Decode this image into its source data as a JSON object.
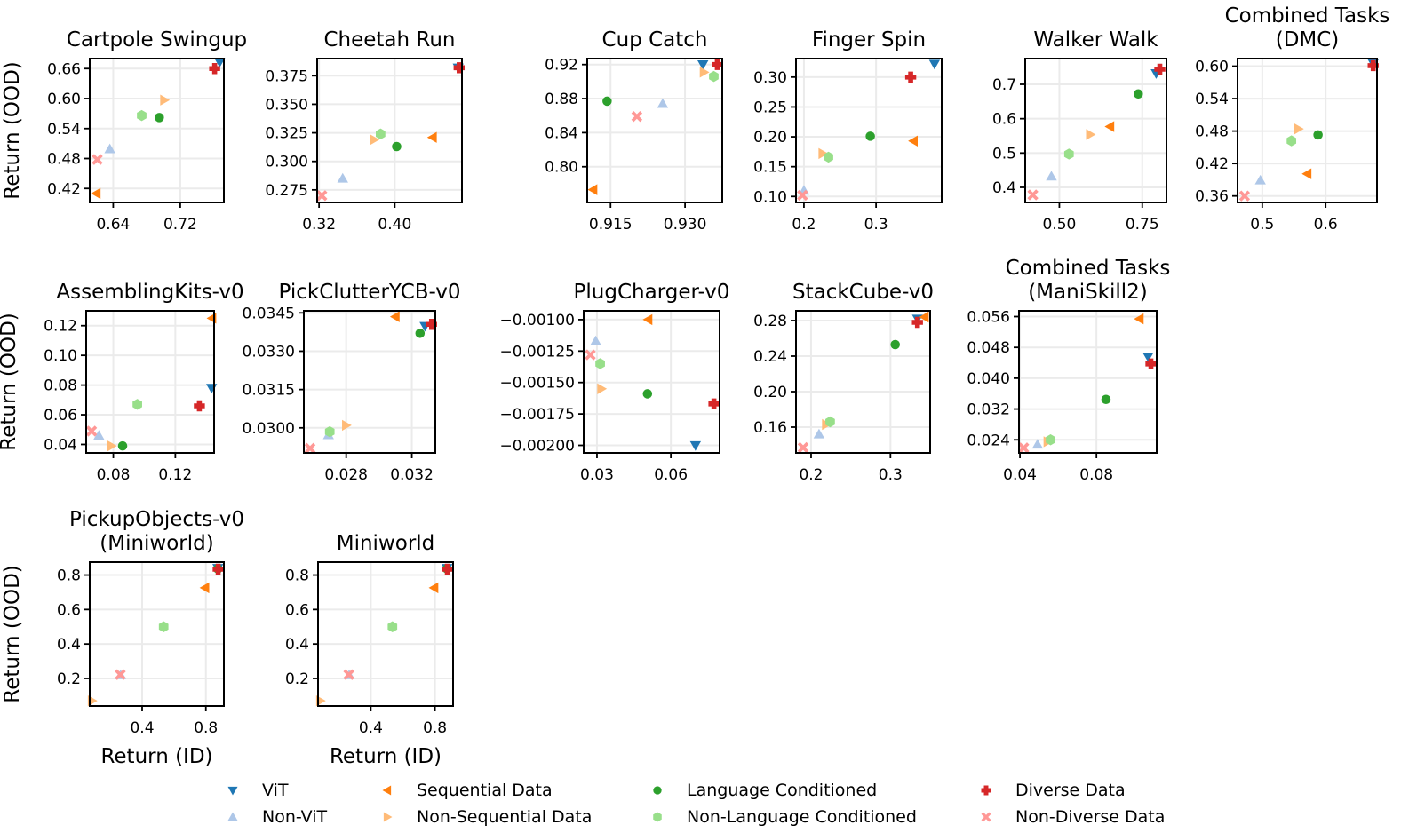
{
  "chart_data": [
    {
      "type": "scatter",
      "title": "Cartpole Swingup",
      "xlabel": "",
      "ylabel": "Return (OOD)",
      "xlim": [
        0.612,
        0.772
      ],
      "ylim": [
        0.392,
        0.68
      ],
      "xticks": [
        "0.64",
        "0.72"
      ],
      "yticks": [
        "0.42",
        "0.48",
        "0.54",
        "0.60",
        "0.66"
      ],
      "points": [
        {
          "series": "ViT",
          "x": 0.767,
          "y": 0.673
        },
        {
          "series": "Non-ViT",
          "x": 0.636,
          "y": 0.499
        },
        {
          "series": "Sequential Data",
          "x": 0.62,
          "y": 0.41
        },
        {
          "series": "Non-Sequential Data",
          "x": 0.701,
          "y": 0.597
        },
        {
          "series": "Language Conditioned",
          "x": 0.695,
          "y": 0.562
        },
        {
          "series": "Non-Language Conditioned",
          "x": 0.674,
          "y": 0.566
        },
        {
          "series": "Diverse Data",
          "x": 0.761,
          "y": 0.66
        },
        {
          "series": "Non-Diverse Data",
          "x": 0.621,
          "y": 0.478
        }
      ]
    },
    {
      "type": "scatter",
      "title": "Cheetah Run",
      "xlabel": "",
      "ylabel": "",
      "xlim": [
        0.318,
        0.471
      ],
      "ylim": [
        0.264,
        0.39
      ],
      "xticks": [
        "0.32",
        "0.40"
      ],
      "yticks": [
        "0.275",
        "0.300",
        "0.325",
        "0.350",
        "0.375"
      ],
      "points": [
        {
          "series": "ViT",
          "x": 0.467,
          "y": 0.382
        },
        {
          "series": "Non-ViT",
          "x": 0.345,
          "y": 0.285
        },
        {
          "series": "Sequential Data",
          "x": 0.44,
          "y": 0.321
        },
        {
          "series": "Non-Sequential Data",
          "x": 0.378,
          "y": 0.319
        },
        {
          "series": "Language Conditioned",
          "x": 0.402,
          "y": 0.313
        },
        {
          "series": "Non-Language Conditioned",
          "x": 0.385,
          "y": 0.324
        },
        {
          "series": "Diverse Data",
          "x": 0.468,
          "y": 0.382
        },
        {
          "series": "Non-Diverse Data",
          "x": 0.323,
          "y": 0.27
        }
      ]
    },
    {
      "type": "scatter",
      "title": "Cup Catch",
      "xlabel": "",
      "ylabel": "",
      "xlim": [
        0.9103,
        0.9375
      ],
      "ylim": [
        0.758,
        0.927
      ],
      "xticks": [
        "0.915",
        "0.930"
      ],
      "yticks": [
        "0.80",
        "0.84",
        "0.88",
        "0.92"
      ],
      "points": [
        {
          "series": "ViT",
          "x": 0.9336,
          "y": 0.92
        },
        {
          "series": "Non-ViT",
          "x": 0.9255,
          "y": 0.874
        },
        {
          "series": "Sequential Data",
          "x": 0.9115,
          "y": 0.773
        },
        {
          "series": "Non-Sequential Data",
          "x": 0.9338,
          "y": 0.911
        },
        {
          "series": "Language Conditioned",
          "x": 0.9143,
          "y": 0.877
        },
        {
          "series": "Non-Language Conditioned",
          "x": 0.9358,
          "y": 0.906
        },
        {
          "series": "Diverse Data",
          "x": 0.9365,
          "y": 0.92
        },
        {
          "series": "Non-Diverse Data",
          "x": 0.9203,
          "y": 0.859
        }
      ]
    },
    {
      "type": "scatter",
      "title": "Finger Spin",
      "xlabel": "",
      "ylabel": "",
      "xlim": [
        0.189,
        0.391
      ],
      "ylim": [
        0.09,
        0.331
      ],
      "xticks": [
        "0.2",
        "0.3"
      ],
      "yticks": [
        "0.10",
        "0.15",
        "0.20",
        "0.25",
        "0.30"
      ],
      "points": [
        {
          "series": "ViT",
          "x": 0.381,
          "y": 0.322
        },
        {
          "series": "Non-ViT",
          "x": 0.2,
          "y": 0.11
        },
        {
          "series": "Sequential Data",
          "x": 0.352,
          "y": 0.193
        },
        {
          "series": "Non-Sequential Data",
          "x": 0.226,
          "y": 0.172
        },
        {
          "series": "Language Conditioned",
          "x": 0.292,
          "y": 0.201
        },
        {
          "series": "Non-Language Conditioned",
          "x": 0.234,
          "y": 0.166
        },
        {
          "series": "Diverse Data",
          "x": 0.348,
          "y": 0.3
        },
        {
          "series": "Non-Diverse Data",
          "x": 0.198,
          "y": 0.102
        }
      ]
    },
    {
      "type": "scatter",
      "title": "Walker Walk",
      "xlabel": "",
      "ylabel": "",
      "xlim": [
        0.397,
        0.823
      ],
      "ylim": [
        0.356,
        0.775
      ],
      "xticks": [
        "0.50",
        "0.75"
      ],
      "yticks": [
        "0.4",
        "0.5",
        "0.6",
        "0.7"
      ],
      "points": [
        {
          "series": "ViT",
          "x": 0.792,
          "y": 0.732
        },
        {
          "series": "Non-ViT",
          "x": 0.476,
          "y": 0.432
        },
        {
          "series": "Sequential Data",
          "x": 0.653,
          "y": 0.577
        },
        {
          "series": "Non-Sequential Data",
          "x": 0.593,
          "y": 0.554
        },
        {
          "series": "Language Conditioned",
          "x": 0.738,
          "y": 0.672
        },
        {
          "series": "Non-Language Conditioned",
          "x": 0.529,
          "y": 0.497
        },
        {
          "series": "Diverse Data",
          "x": 0.803,
          "y": 0.744
        },
        {
          "series": "Non-Diverse Data",
          "x": 0.42,
          "y": 0.378
        }
      ]
    },
    {
      "type": "scatter",
      "title": "Combined Tasks\n(DMC)",
      "xlabel": "",
      "ylabel": "",
      "xlim": [
        0.461,
        0.681
      ],
      "ylim": [
        0.348,
        0.614
      ],
      "xticks": [
        "0.5",
        "0.6"
      ],
      "yticks": [
        "0.36",
        "0.42",
        "0.48",
        "0.54",
        "0.60"
      ],
      "points": [
        {
          "series": "ViT",
          "x": 0.675,
          "y": 0.605
        },
        {
          "series": "Non-ViT",
          "x": 0.497,
          "y": 0.389
        },
        {
          "series": "Sequential Data",
          "x": 0.571,
          "y": 0.401
        },
        {
          "series": "Non-Sequential Data",
          "x": 0.557,
          "y": 0.484
        },
        {
          "series": "Language Conditioned",
          "x": 0.588,
          "y": 0.473
        },
        {
          "series": "Non-Language Conditioned",
          "x": 0.546,
          "y": 0.462
        },
        {
          "series": "Diverse Data",
          "x": 0.675,
          "y": 0.601
        },
        {
          "series": "Non-Diverse Data",
          "x": 0.472,
          "y": 0.36
        }
      ]
    },
    {
      "type": "scatter",
      "title": "AssemblingKits-v0",
      "xlabel": "",
      "ylabel": "Return (OOD)",
      "xlim": [
        0.0625,
        0.145
      ],
      "ylim": [
        0.0343,
        0.13
      ],
      "xticks": [
        "0.08",
        "0.12"
      ],
      "yticks": [
        "0.04",
        "0.06",
        "0.08",
        "0.10",
        "0.12"
      ],
      "points": [
        {
          "series": "ViT",
          "x": 0.1434,
          "y": 0.078
        },
        {
          "series": "Non-ViT",
          "x": 0.0707,
          "y": 0.046
        },
        {
          "series": "Sequential Data",
          "x": 0.1437,
          "y": 0.125
        },
        {
          "series": "Non-Sequential Data",
          "x": 0.0788,
          "y": 0.039
        },
        {
          "series": "Language Conditioned",
          "x": 0.086,
          "y": 0.039
        },
        {
          "series": "Non-Language Conditioned",
          "x": 0.0955,
          "y": 0.067
        },
        {
          "series": "Diverse Data",
          "x": 0.1355,
          "y": 0.066
        },
        {
          "series": "Non-Diverse Data",
          "x": 0.066,
          "y": 0.049
        }
      ]
    },
    {
      "type": "scatter",
      "title": "PickClutterYCB-v0",
      "xlabel": "",
      "ylabel": "",
      "xlim": [
        0.02542,
        0.03343
      ],
      "ylim": [
        0.02902,
        0.03458
      ],
      "xticks": [
        "0.028",
        "0.032"
      ],
      "yticks": [
        "0.0300",
        "0.0315",
        "0.0330",
        "0.0345"
      ],
      "points": [
        {
          "series": "ViT",
          "x": 0.0328,
          "y": 0.03398
        },
        {
          "series": "Non-ViT",
          "x": 0.02692,
          "y": 0.02972
        },
        {
          "series": "Sequential Data",
          "x": 0.031,
          "y": 0.03435
        },
        {
          "series": "Non-Sequential Data",
          "x": 0.028,
          "y": 0.0301
        },
        {
          "series": "Language Conditioned",
          "x": 0.0325,
          "y": 0.0337
        },
        {
          "series": "Non-Language Conditioned",
          "x": 0.027,
          "y": 0.02985
        },
        {
          "series": "Diverse Data",
          "x": 0.0332,
          "y": 0.03405
        },
        {
          "series": "Non-Diverse Data",
          "x": 0.0258,
          "y": 0.0292
        }
      ]
    },
    {
      "type": "scatter",
      "title": "PlugCharger-v0",
      "xlabel": "",
      "ylabel": "",
      "xlim": [
        0.0246,
        0.0798
      ],
      "ylim": [
        -0.00206,
        -0.00093
      ],
      "xticks": [
        "0.03",
        "0.06"
      ],
      "yticks": [
        "−0.00200",
        "−0.00175",
        "−0.00150",
        "−0.00125",
        "−0.00100"
      ],
      "points": [
        {
          "series": "ViT",
          "x": 0.07,
          "y": -0.002
        },
        {
          "series": "Non-ViT",
          "x": 0.0295,
          "y": -0.00117
        },
        {
          "series": "Sequential Data",
          "x": 0.0508,
          "y": -0.001
        },
        {
          "series": "Non-Sequential Data",
          "x": 0.0318,
          "y": -0.00155
        },
        {
          "series": "Language Conditioned",
          "x": 0.0505,
          "y": -0.00159
        },
        {
          "series": "Non-Language Conditioned",
          "x": 0.0313,
          "y": -0.00135
        },
        {
          "series": "Diverse Data",
          "x": 0.0775,
          "y": -0.00167
        },
        {
          "series": "Non-Diverse Data",
          "x": 0.0273,
          "y": -0.00128
        }
      ]
    },
    {
      "type": "scatter",
      "title": "StackCube-v0",
      "xlabel": "",
      "ylabel": "",
      "xlim": [
        0.181,
        0.35
      ],
      "ylim": [
        0.131,
        0.291
      ],
      "xticks": [
        "0.2",
        "0.3"
      ],
      "yticks": [
        "0.16",
        "0.20",
        "0.24",
        "0.28"
      ],
      "points": [
        {
          "series": "ViT",
          "x": 0.334,
          "y": 0.282
        },
        {
          "series": "Non-ViT",
          "x": 0.21,
          "y": 0.152
        },
        {
          "series": "Sequential Data",
          "x": 0.343,
          "y": 0.284
        },
        {
          "series": "Non-Sequential Data",
          "x": 0.219,
          "y": 0.163
        },
        {
          "series": "Language Conditioned",
          "x": 0.306,
          "y": 0.253
        },
        {
          "series": "Non-Language Conditioned",
          "x": 0.224,
          "y": 0.166
        },
        {
          "series": "Diverse Data",
          "x": 0.334,
          "y": 0.278
        },
        {
          "series": "Non-Diverse Data",
          "x": 0.19,
          "y": 0.137
        }
      ]
    },
    {
      "type": "scatter",
      "title": "Combined Tasks\n(ManiSkill2)",
      "xlabel": "",
      "ylabel": "",
      "xlim": [
        0.0395,
        0.1115
      ],
      "ylim": [
        0.0206,
        0.0575
      ],
      "xticks": [
        "0.04",
        "0.08"
      ],
      "yticks": [
        "0.024",
        "0.032",
        "0.040",
        "0.048",
        "0.056"
      ],
      "points": [
        {
          "series": "ViT",
          "x": 0.107,
          "y": 0.0456
        },
        {
          "series": "Non-ViT",
          "x": 0.0492,
          "y": 0.0228
        },
        {
          "series": "Sequential Data",
          "x": 0.1025,
          "y": 0.0554
        },
        {
          "series": "Non-Sequential Data",
          "x": 0.0545,
          "y": 0.0235
        },
        {
          "series": "Language Conditioned",
          "x": 0.085,
          "y": 0.0345
        },
        {
          "series": "Non-Language Conditioned",
          "x": 0.056,
          "y": 0.024
        },
        {
          "series": "Diverse Data",
          "x": 0.1085,
          "y": 0.0437
        },
        {
          "series": "Non-Diverse Data",
          "x": 0.042,
          "y": 0.0219
        }
      ]
    },
    {
      "type": "scatter",
      "title": "PickupObjects-v0\n(Miniworld)",
      "xlabel": "Return (ID)",
      "ylabel": "Return (OOD)",
      "xlim": [
        0.071,
        0.913
      ],
      "ylim": [
        0.04,
        0.875
      ],
      "xticks": [
        "0.4",
        "0.8"
      ],
      "yticks": [
        "0.2",
        "0.4",
        "0.6",
        "0.8"
      ],
      "points": [
        {
          "series": "ViT",
          "x": 0.875,
          "y": 0.84
        },
        {
          "series": "Non-ViT",
          "x": 0.265,
          "y": 0.22
        },
        {
          "series": "Sequential Data",
          "x": 0.795,
          "y": 0.726
        },
        {
          "series": "Non-Sequential Data",
          "x": 0.085,
          "y": 0.07
        },
        {
          "series": "Language Conditioned",
          "x": 0.875,
          "y": 0.836
        },
        {
          "series": "Non-Language Conditioned",
          "x": 0.535,
          "y": 0.5
        },
        {
          "series": "Diverse Data",
          "x": 0.877,
          "y": 0.834
        },
        {
          "series": "Non-Diverse Data",
          "x": 0.263,
          "y": 0.222
        }
      ]
    },
    {
      "type": "scatter",
      "title": "Miniworld",
      "xlabel": "Return (ID)",
      "ylabel": "",
      "xlim": [
        0.071,
        0.913
      ],
      "ylim": [
        0.04,
        0.875
      ],
      "xticks": [
        "0.4",
        "0.8"
      ],
      "yticks": [
        "0.2",
        "0.4",
        "0.6",
        "0.8"
      ],
      "points": [
        {
          "series": "ViT",
          "x": 0.875,
          "y": 0.84
        },
        {
          "series": "Non-ViT",
          "x": 0.265,
          "y": 0.22
        },
        {
          "series": "Sequential Data",
          "x": 0.795,
          "y": 0.726
        },
        {
          "series": "Non-Sequential Data",
          "x": 0.085,
          "y": 0.07
        },
        {
          "series": "Language Conditioned",
          "x": 0.875,
          "y": 0.836
        },
        {
          "series": "Non-Language Conditioned",
          "x": 0.535,
          "y": 0.5
        },
        {
          "series": "Diverse Data",
          "x": 0.877,
          "y": 0.834
        },
        {
          "series": "Non-Diverse Data",
          "x": 0.263,
          "y": 0.222
        }
      ]
    }
  ],
  "legend": {
    "placement": "bottom",
    "items": [
      {
        "label": "ViT",
        "marker": "triangle-down",
        "color": "#1f77b4"
      },
      {
        "label": "Non-ViT",
        "marker": "triangle-up",
        "color": "#aec7e8"
      },
      {
        "label": "Sequential Data",
        "marker": "triangle-left",
        "color": "#ff7f0e"
      },
      {
        "label": "Non-Sequential Data",
        "marker": "triangle-right",
        "color": "#ffbb78"
      },
      {
        "label": "Language Conditioned",
        "marker": "circle",
        "color": "#2ca02c"
      },
      {
        "label": "Non-Language Conditioned",
        "marker": "hexagon",
        "color": "#98df8a"
      },
      {
        "label": "Diverse Data",
        "marker": "plus-filled",
        "color": "#d62728"
      },
      {
        "label": "Non-Diverse Data",
        "marker": "x-filled",
        "color": "#ff9896"
      }
    ]
  }
}
